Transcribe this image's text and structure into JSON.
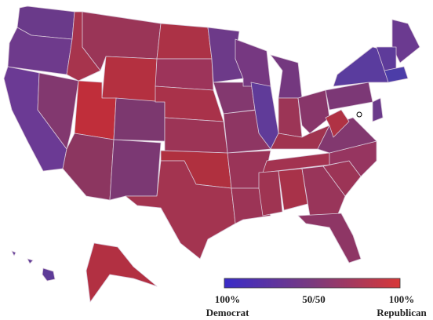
{
  "legend": {
    "left": {
      "percent": "100%",
      "party": "Democrat"
    },
    "center": "50/50",
    "right": {
      "percent": "100%",
      "party": "Republican"
    }
  }
}
